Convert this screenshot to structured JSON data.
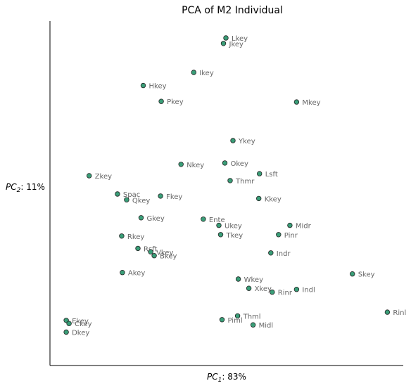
{
  "chart_data": {
    "type": "scatter",
    "title": "PCA of M2 Individual",
    "xlabel": "$PC_1$: 83%",
    "ylabel": "$PC_2$: 11%",
    "xlim": [
      0,
      100
    ],
    "ylim": [
      0,
      100
    ],
    "grid": false,
    "marker_color": "#3a9e78",
    "points": [
      {
        "label": "Lkey",
        "x": 49.8,
        "y": 95.1
      },
      {
        "label": "Jkey",
        "x": 49.1,
        "y": 93.5
      },
      {
        "label": "Ikey",
        "x": 40.7,
        "y": 85.1
      },
      {
        "label": "Hkey",
        "x": 26.4,
        "y": 81.3
      },
      {
        "label": "Pkey",
        "x": 31.5,
        "y": 76.7
      },
      {
        "label": "Mkey",
        "x": 69.8,
        "y": 76.5
      },
      {
        "label": "Ykey",
        "x": 51.8,
        "y": 65.3
      },
      {
        "label": "Nkey",
        "x": 37.1,
        "y": 58.4
      },
      {
        "label": "Okey",
        "x": 49.5,
        "y": 58.8
      },
      {
        "label": "Lsft",
        "x": 59.3,
        "y": 55.7
      },
      {
        "label": "Thmr",
        "x": 51.0,
        "y": 53.7
      },
      {
        "label": "Zkey",
        "x": 11.1,
        "y": 55.1
      },
      {
        "label": "Spac",
        "x": 19.1,
        "y": 49.8
      },
      {
        "label": "Qkey",
        "x": 21.7,
        "y": 48.1
      },
      {
        "label": "Fkey",
        "x": 31.3,
        "y": 49.2
      },
      {
        "label": "Kkey",
        "x": 59.1,
        "y": 48.5
      },
      {
        "label": "Gkey",
        "x": 25.8,
        "y": 42.9
      },
      {
        "label": "Ente",
        "x": 43.4,
        "y": 42.5
      },
      {
        "label": "Ukey",
        "x": 47.8,
        "y": 40.7
      },
      {
        "label": "Midr",
        "x": 67.9,
        "y": 40.7
      },
      {
        "label": "Rkey",
        "x": 20.3,
        "y": 37.6
      },
      {
        "label": "Tkey",
        "x": 48.3,
        "y": 38.0
      },
      {
        "label": "Pinr",
        "x": 64.7,
        "y": 38.0
      },
      {
        "label": "Rsft",
        "x": 24.9,
        "y": 34.0
      },
      {
        "label": "Vkey",
        "x": 28.5,
        "y": 33.0
      },
      {
        "label": "Bkey",
        "x": 29.5,
        "y": 31.9
      },
      {
        "label": "Indr",
        "x": 62.5,
        "y": 32.7
      },
      {
        "label": "Akey",
        "x": 20.5,
        "y": 27.0
      },
      {
        "label": "Skey",
        "x": 85.6,
        "y": 26.6
      },
      {
        "label": "Wkey",
        "x": 53.3,
        "y": 25.1
      },
      {
        "label": "Xkey",
        "x": 56.3,
        "y": 22.4
      },
      {
        "label": "Rinr",
        "x": 62.9,
        "y": 21.3
      },
      {
        "label": "Indl",
        "x": 69.8,
        "y": 22.1
      },
      {
        "label": "Rinl",
        "x": 95.5,
        "y": 15.5
      },
      {
        "label": "Thml",
        "x": 53.1,
        "y": 14.4
      },
      {
        "label": "Piml",
        "x": 48.7,
        "y": 13.3
      },
      {
        "label": "Midl",
        "x": 57.5,
        "y": 11.8
      },
      {
        "label": "Ekey",
        "x": 4.6,
        "y": 13.1
      },
      {
        "label": "Ckey",
        "x": 5.4,
        "y": 12.2
      },
      {
        "label": "Dkey",
        "x": 4.6,
        "y": 9.7
      }
    ]
  }
}
